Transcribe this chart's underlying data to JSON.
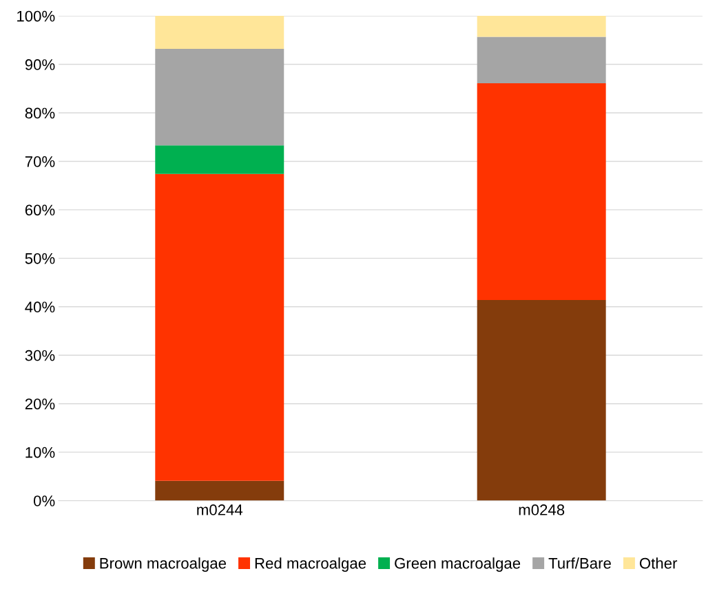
{
  "chart_data": {
    "type": "bar",
    "stacked": true,
    "categories": [
      "m0244",
      "m0248"
    ],
    "series": [
      {
        "name": "Brown macroalgae",
        "color": "#843c0c",
        "values": [
          4.1,
          41.4
        ]
      },
      {
        "name": "Red macroalgae",
        "color": "#ff3300",
        "values": [
          63.3,
          44.7
        ]
      },
      {
        "name": "Green macroalgae",
        "color": "#00b050",
        "values": [
          5.9,
          0
        ]
      },
      {
        "name": "Turf/Bare",
        "color": "#a5a5a5",
        "values": [
          19.9,
          9.6
        ]
      },
      {
        "name": "Other",
        "color": "#ffe699",
        "values": [
          6.8,
          4.3
        ]
      }
    ],
    "ylim": [
      0,
      100
    ],
    "yticks": [
      {
        "value": 0,
        "label": "0%"
      },
      {
        "value": 10,
        "label": "10%"
      },
      {
        "value": 20,
        "label": "20%"
      },
      {
        "value": 30,
        "label": "30%"
      },
      {
        "value": 40,
        "label": "40%"
      },
      {
        "value": 50,
        "label": "50%"
      },
      {
        "value": 60,
        "label": "60%"
      },
      {
        "value": 70,
        "label": "70%"
      },
      {
        "value": 80,
        "label": "80%"
      },
      {
        "value": 90,
        "label": "90%"
      },
      {
        "value": 100,
        "label": "100%"
      }
    ],
    "grid": "y",
    "legend": "bottom"
  }
}
